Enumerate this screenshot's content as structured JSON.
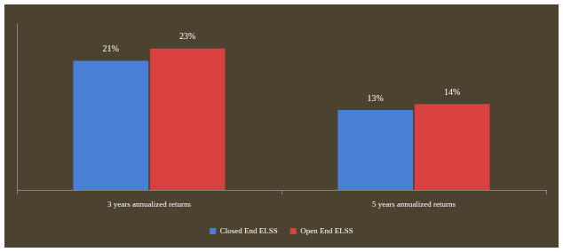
{
  "chart_data": {
    "type": "bar",
    "categories": [
      "3 years annualized returns",
      "5 years annualized returns"
    ],
    "series": [
      {
        "name": "Closed End ELSS",
        "color": "#4a7fd6",
        "values": [
          21,
          13
        ],
        "value_labels": [
          "21%",
          "13%"
        ]
      },
      {
        "name": "Open End ELSS",
        "color": "#d94141",
        "values": [
          23,
          14
        ],
        "value_labels": [
          "23%",
          "14%"
        ]
      }
    ],
    "ylim": [
      0,
      27
    ],
    "grid": false,
    "legend": "bottom",
    "data_labels": true,
    "tick_labels": "x"
  }
}
